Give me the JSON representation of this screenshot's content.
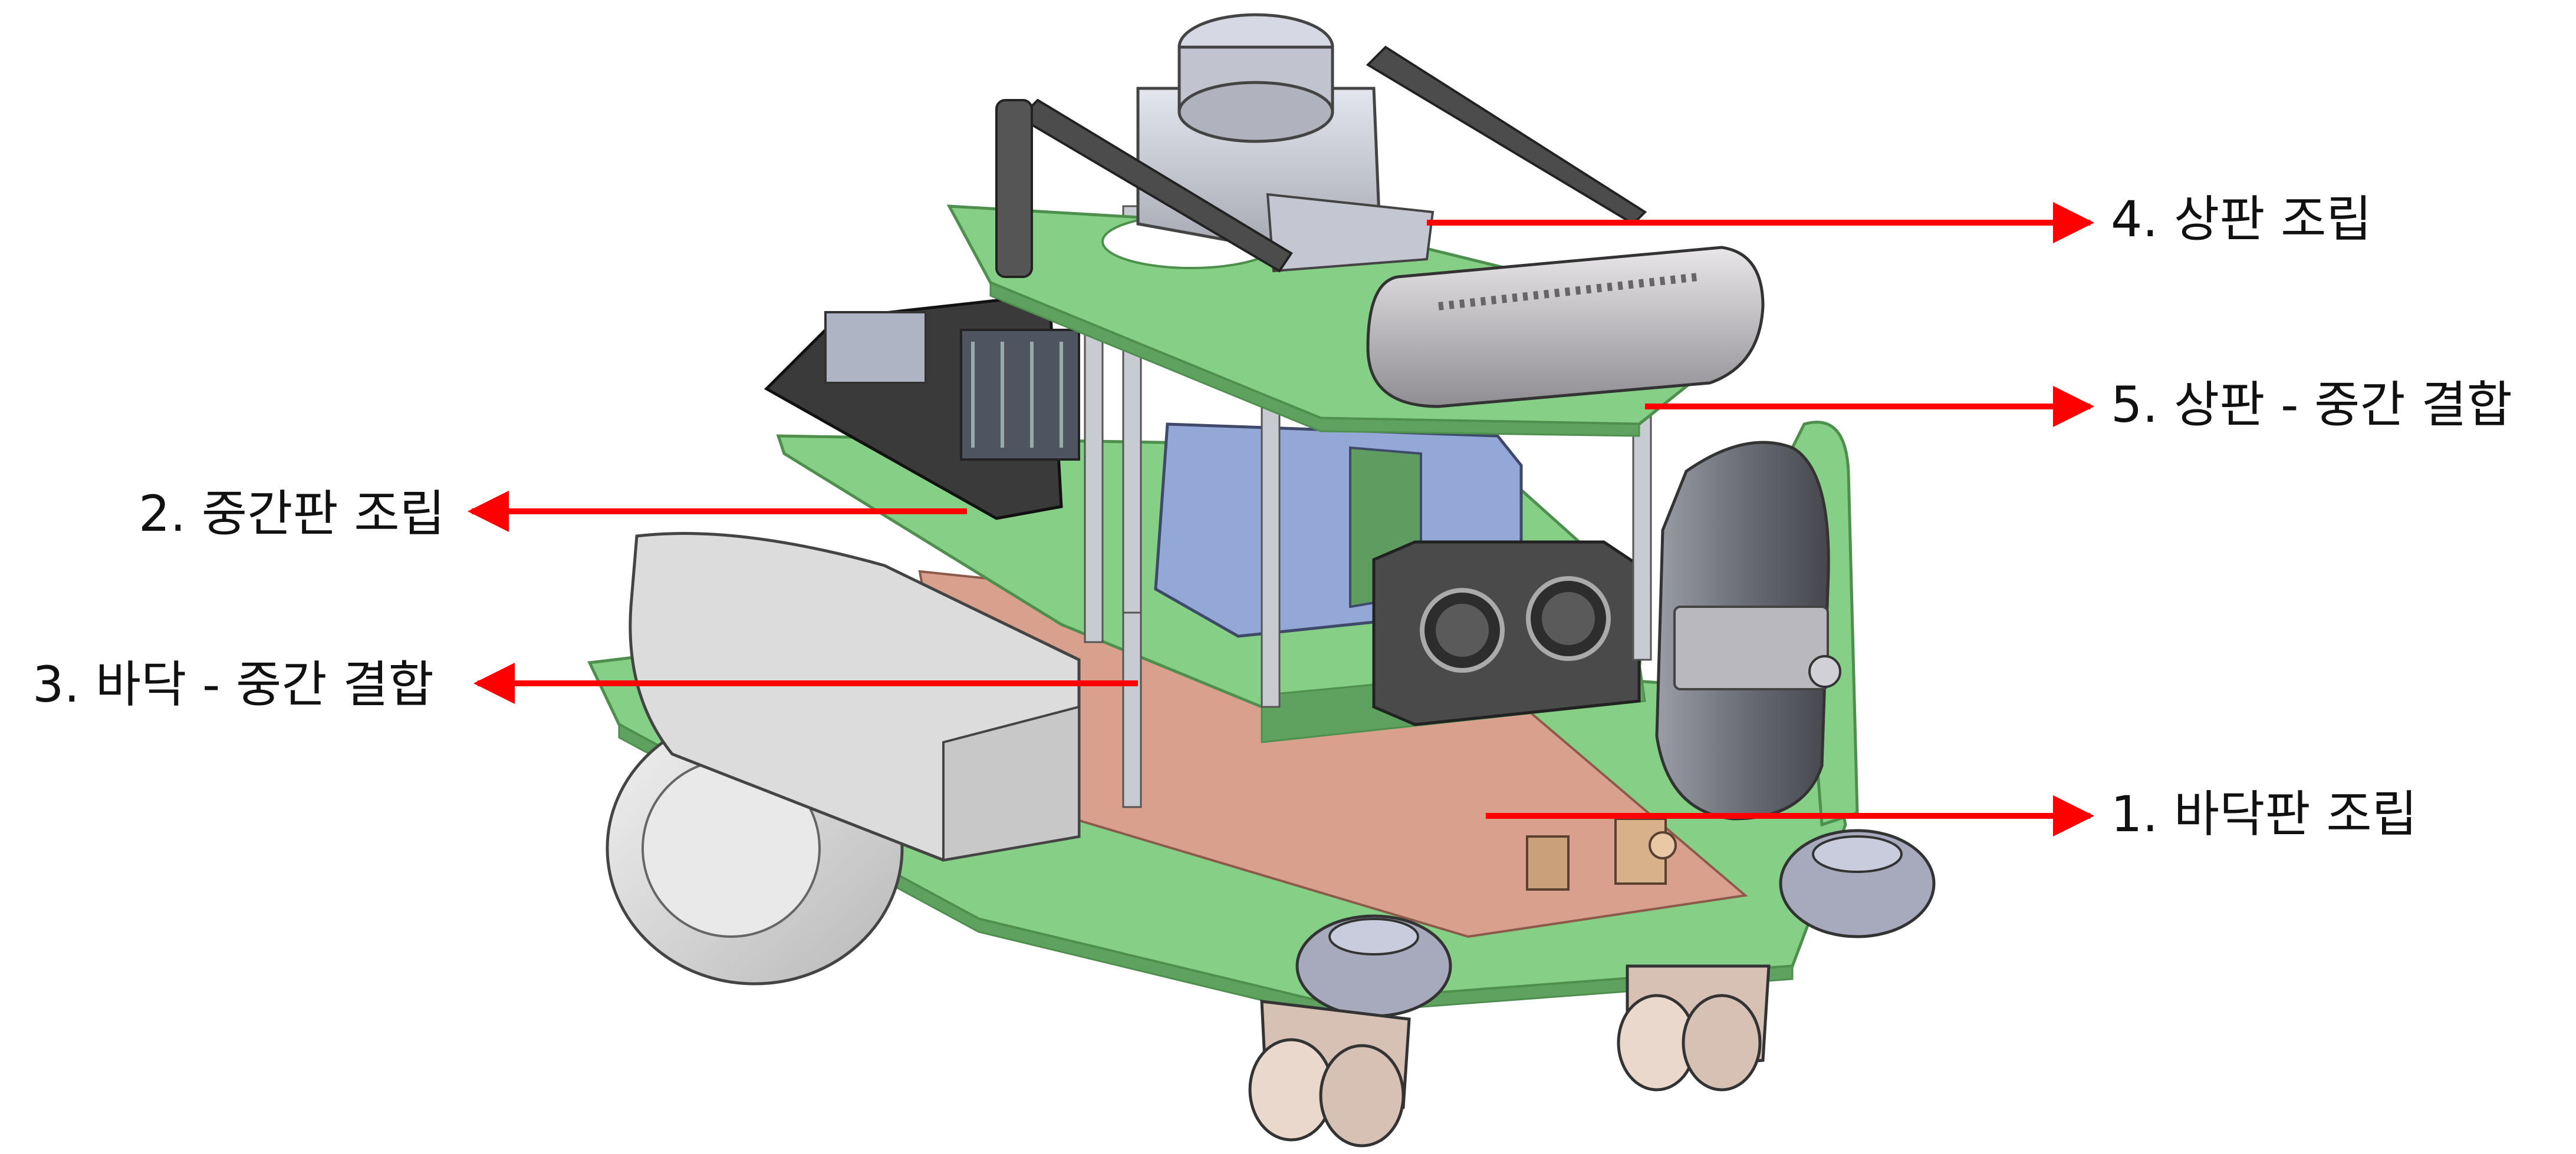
{
  "labels": {
    "step1": "1. 바닥판 조립",
    "step2": "2. 중간판 조립",
    "step3": "3. 바닥 - 중간 결합",
    "step4": "4. 상판 조립",
    "step5": "5. 상판 - 중간 결합"
  },
  "colors": {
    "plate_green": "#86cf86",
    "plate_green_edge": "#4e8f4e",
    "pcb_copper": "#d9a08e",
    "battery_blue": "#93a8d6",
    "metal_grey": "#c9cbd2",
    "arrow_red": "#ff0000"
  },
  "icons": {
    "arrow": "red-arrow-icon",
    "robot": "robot-assembly-illustration"
  }
}
